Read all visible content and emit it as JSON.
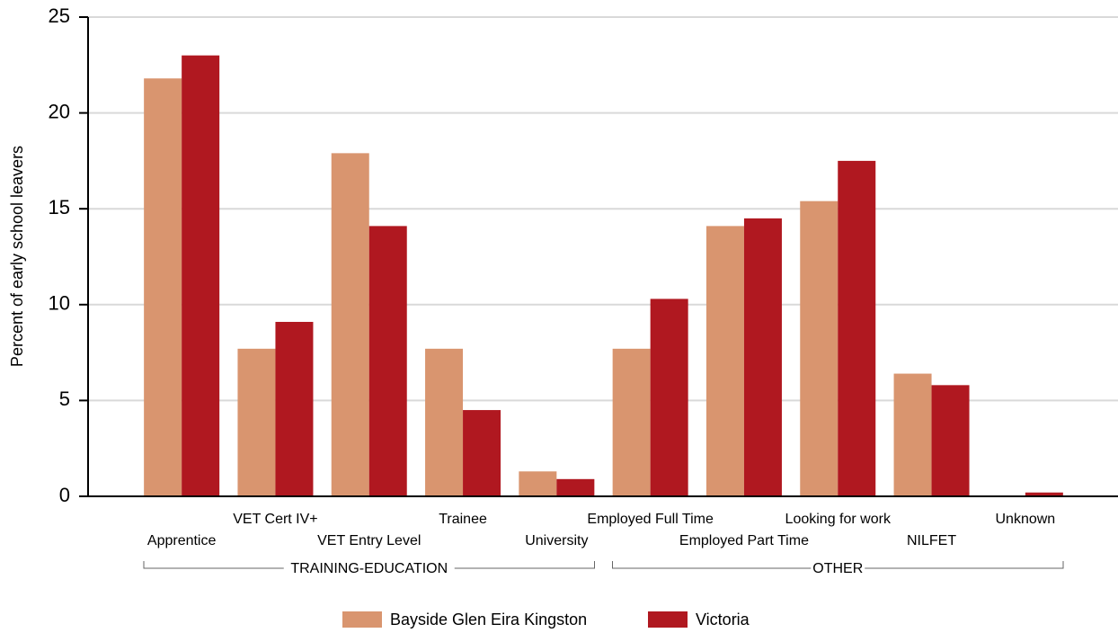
{
  "chart_data": {
    "type": "bar",
    "y_axis_label": "Percent of early school leavers",
    "categories": [
      "Apprentice",
      "VET Cert IV+",
      "VET Entry Level",
      "Trainee",
      "University",
      "Employed Full Time",
      "Employed Part Time",
      "Looking for work",
      "NILFET",
      "Unknown"
    ],
    "groups": [
      {
        "name": "TRAINING-EDUCATION",
        "count": 5
      },
      {
        "name": "OTHER",
        "count": 5
      }
    ],
    "series": [
      {
        "name": "Bayside Glen Eira Kingston",
        "color": "#d9956f",
        "values": [
          21.8,
          7.7,
          17.9,
          7.7,
          1.3,
          7.7,
          14.1,
          15.4,
          6.4,
          0
        ]
      },
      {
        "name": "Victoria",
        "color": "#b01820",
        "values": [
          23.0,
          9.1,
          14.1,
          4.5,
          0.9,
          10.3,
          14.5,
          17.5,
          5.8,
          0.2
        ]
      }
    ],
    "ylim": [
      0,
      25
    ],
    "yticks": [
      0,
      5,
      10,
      15,
      20,
      25
    ],
    "grid": true,
    "legend": "bottom"
  }
}
